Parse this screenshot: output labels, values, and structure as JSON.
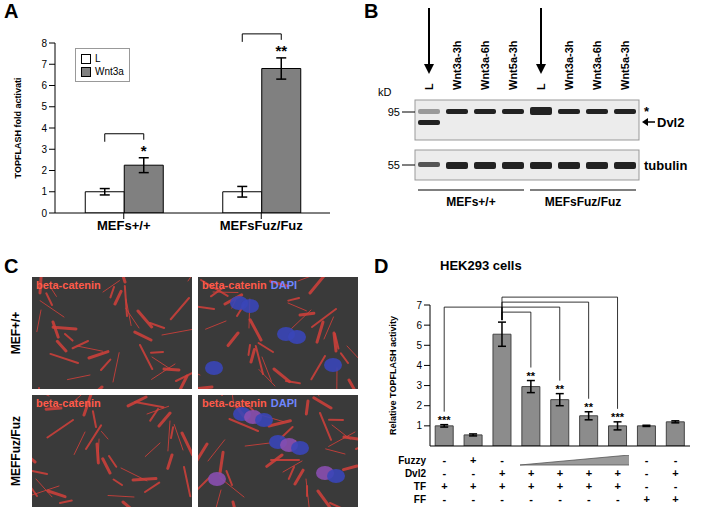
{
  "panel_labels": [
    "A",
    "B",
    "C",
    "D"
  ],
  "chart_data": [
    {
      "type": "bar",
      "y_label": "TOPFLASH fold activati",
      "categories": [
        "MEFs+/+",
        "MEFsFuz/Fuz"
      ],
      "series": [
        {
          "name": "L",
          "color": "#ffffff",
          "values": [
            1,
            1
          ],
          "errors": [
            0.15,
            0.25
          ]
        },
        {
          "name": "Wnt3a",
          "color": "#808080",
          "values": [
            2.25,
            6.8
          ],
          "errors": [
            0.35,
            0.5
          ],
          "significance": [
            "*",
            "**"
          ]
        }
      ],
      "ylim": [
        0,
        8
      ],
      "yticks": [
        0,
        1,
        2,
        3,
        4,
        5,
        6,
        7,
        8
      ],
      "legend": "top-left"
    },
    {
      "type": "bar",
      "title": "HEK293 cells",
      "y_label": "Relative TOPFLASH activity",
      "categories": [
        null,
        null,
        null,
        null,
        null,
        null,
        null,
        null,
        null
      ],
      "values": [
        1.0,
        0.55,
        5.55,
        2.95,
        2.3,
        1.5,
        1.0,
        1.0,
        1.2
      ],
      "errors": [
        0.06,
        0.05,
        0.6,
        0.3,
        0.3,
        0.2,
        0.2,
        0.03,
        0.05
      ],
      "significance": [
        "***",
        null,
        null,
        "**",
        "**",
        "**",
        "***",
        null,
        null
      ],
      "color": "#8c8c8c",
      "ylim": [
        0,
        7
      ],
      "yticks": [
        0,
        1,
        2,
        3,
        4,
        5,
        6,
        7
      ],
      "conditions": [
        {
          "name": "Fuzzy",
          "values": [
            "-",
            "+",
            "-",
            null,
            null,
            null,
            null,
            "-",
            "-"
          ]
        },
        {
          "name": "Dvl2",
          "values": [
            "-",
            "-",
            "+",
            "+",
            "+",
            "+",
            "+",
            "-",
            "+"
          ]
        },
        {
          "name": "TF",
          "values": [
            "+",
            "+",
            "+",
            "+",
            "+",
            "+",
            "+",
            "-",
            "-"
          ]
        },
        {
          "name": "FF",
          "values": [
            "-",
            "-",
            "-",
            "-",
            "-",
            "-",
            "-",
            "+",
            "+"
          ]
        }
      ]
    }
  ],
  "blot": {
    "unit": "kD",
    "markers": [
      95,
      55
    ],
    "lanes": [
      "L",
      "Wnt3a-3h",
      "Wnt3a-6h",
      "Wnt5a-3h",
      "L",
      "Wnt3a-3h",
      "Wnt3a-6h",
      "Wnt5a-3h"
    ],
    "groups": [
      "MEFs+/+",
      "MEFsFuz/Fuz"
    ],
    "rows": [
      "Dvl2",
      "tubulin"
    ],
    "shift_mark": "*"
  },
  "micrographs": {
    "rows": [
      "MEF+/+",
      "MEFFuz/Fuz"
    ],
    "stains": [
      "beta-catenin",
      "DAPI"
    ]
  }
}
